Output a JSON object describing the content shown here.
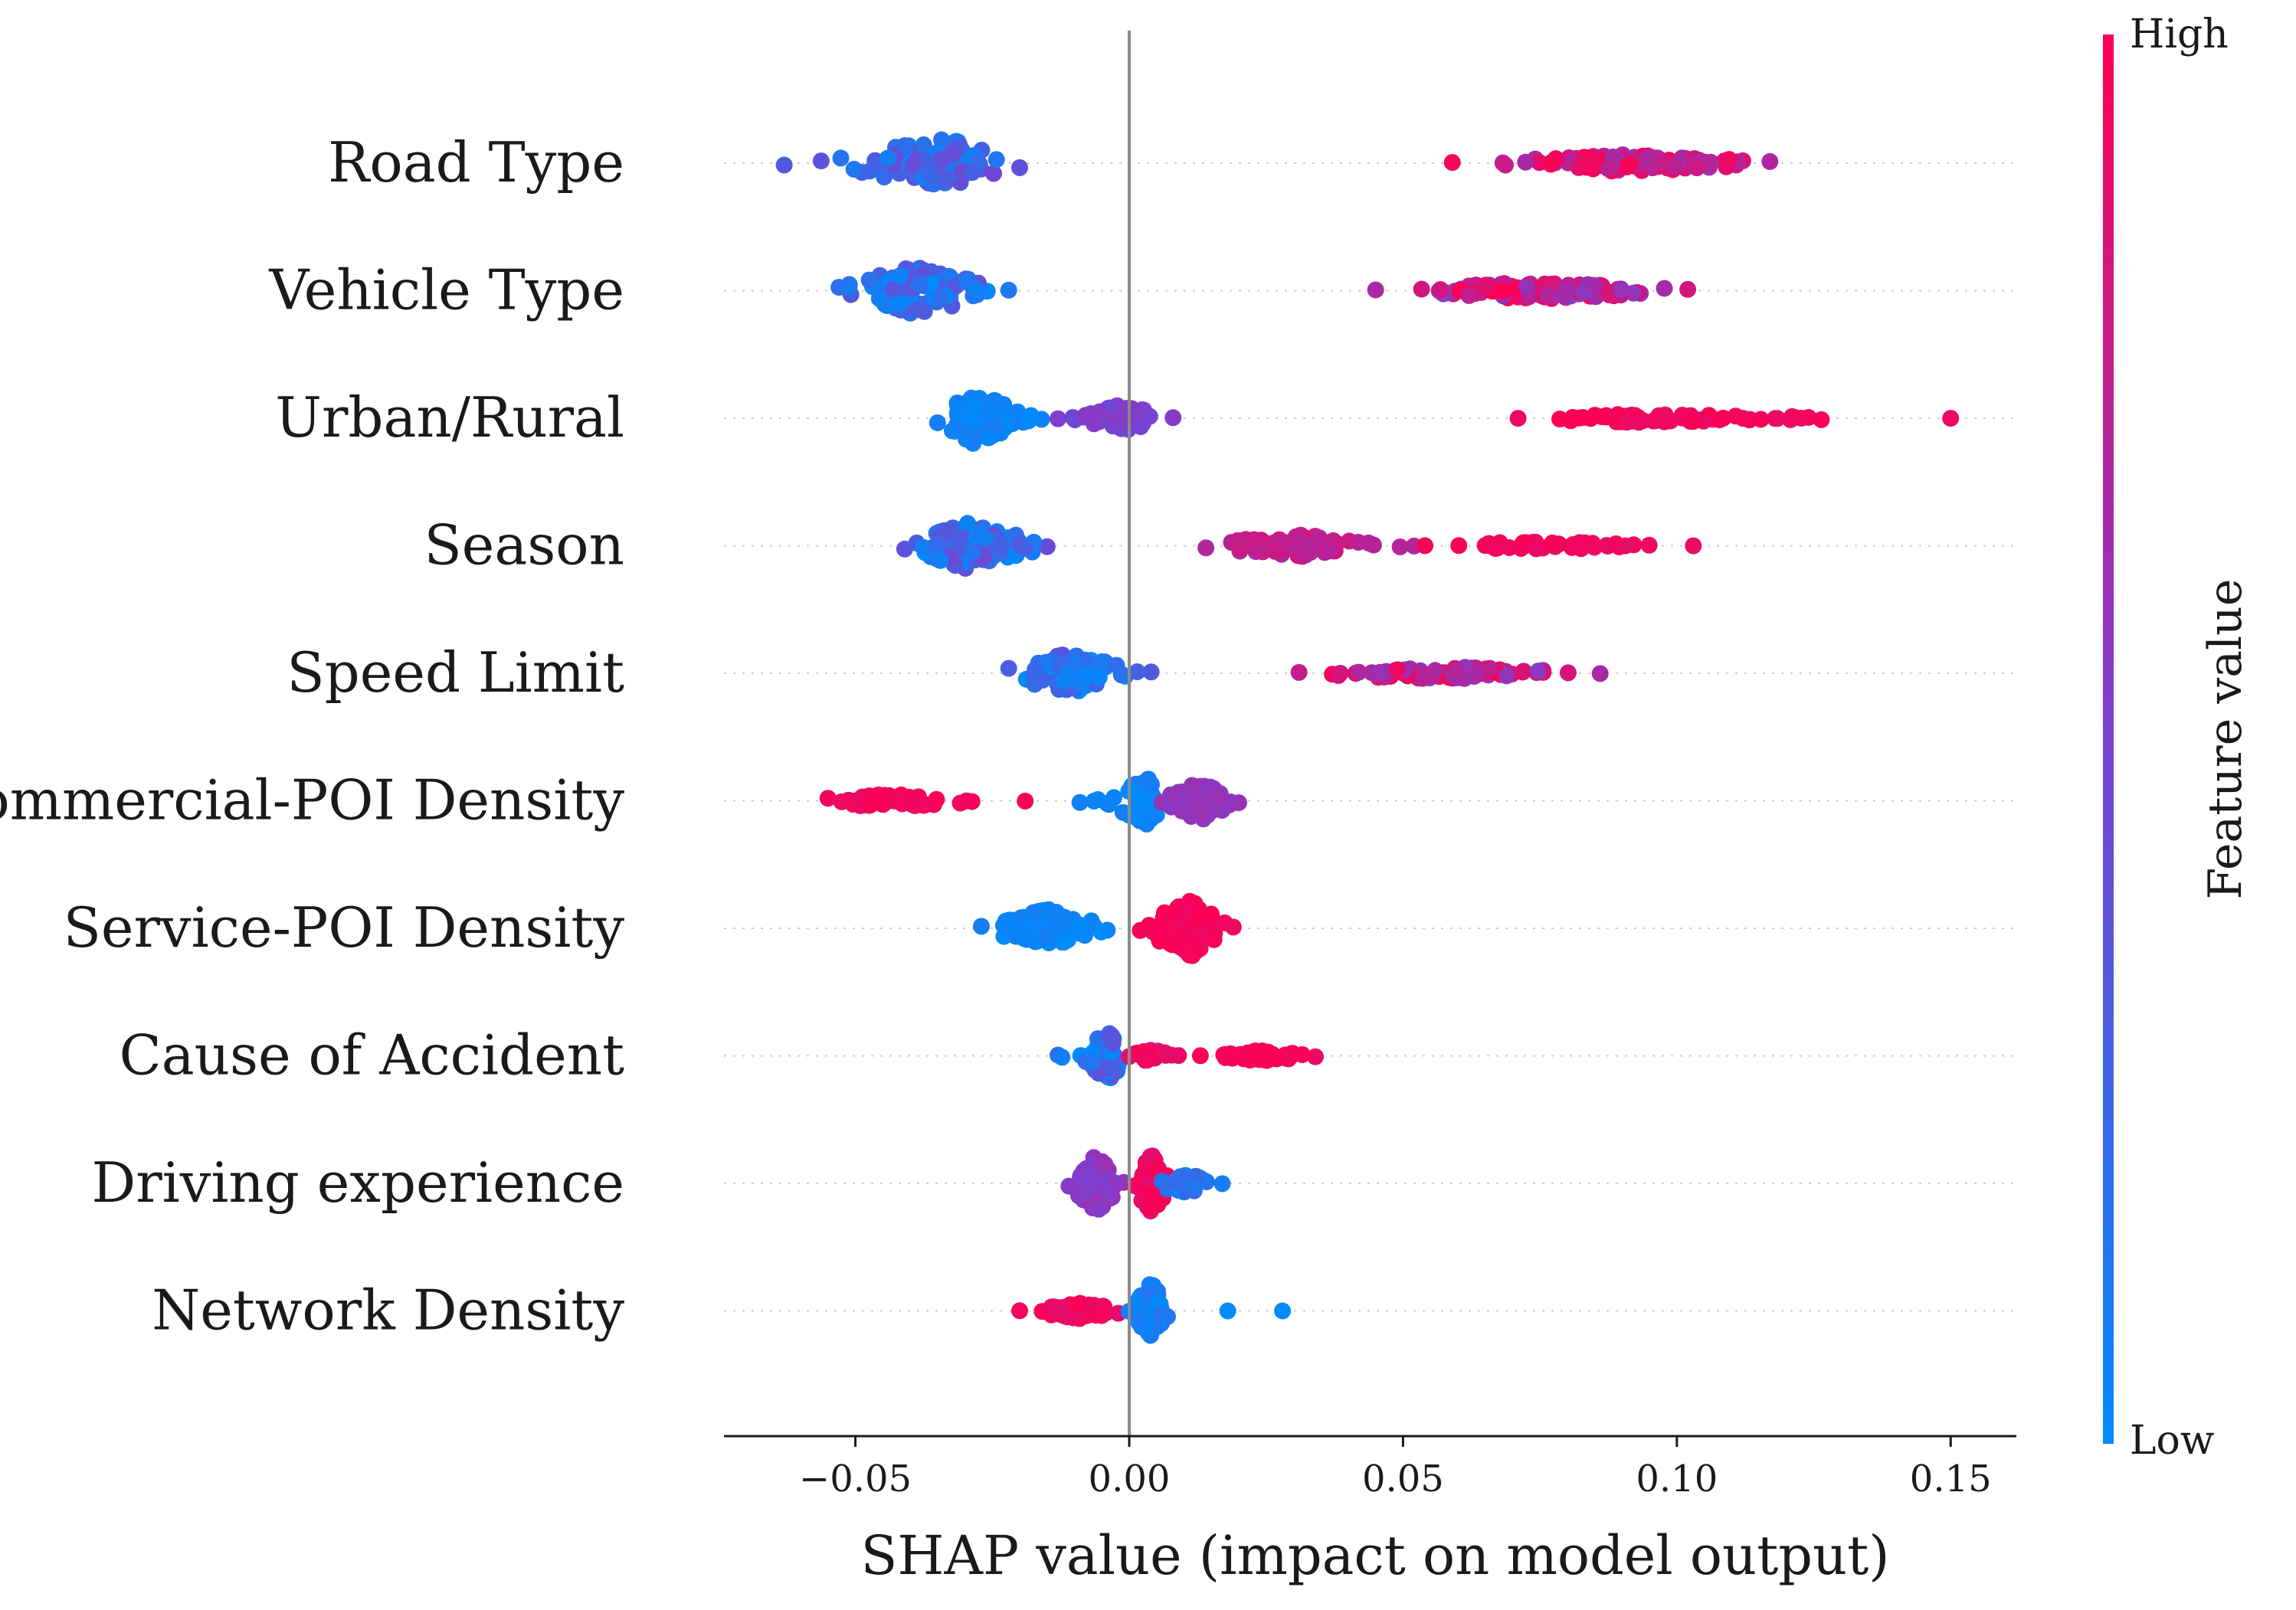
{
  "chart_data": {
    "type": "scatter",
    "subtype": "shap_beeswarm",
    "title": "",
    "xlabel": "SHAP value (impact on model output)",
    "ylabel": "",
    "xlim": [
      -0.074,
      0.162
    ],
    "xticks": [
      -0.05,
      0.0,
      0.05,
      0.1,
      0.15
    ],
    "xtick_labels": [
      "−0.05",
      "0.00",
      "0.05",
      "0.10",
      "0.15"
    ],
    "zero_line": 0.0,
    "colorbar": {
      "title": "Feature value",
      "high_label": "High",
      "low_label": "Low",
      "low_color": "#008bfb",
      "mid_color": "#7b3fd0",
      "high_color": "#ff0052"
    },
    "features": [
      {
        "name": "Road Type",
        "clusters": [
          {
            "min": -0.063,
            "max": -0.02,
            "center": -0.034,
            "n": 110,
            "spread": 0.55,
            "color_low": 0.05,
            "color_high": 0.45
          },
          {
            "min": 0.059,
            "max": 0.117,
            "center": 0.092,
            "n": 110,
            "spread": 0.2,
            "color_low": 0.65,
            "color_high": 1.0
          }
        ]
      },
      {
        "name": "Vehicle Type",
        "clusters": [
          {
            "min": -0.053,
            "max": -0.022,
            "center": -0.039,
            "n": 110,
            "spread": 0.55,
            "color_low": 0.0,
            "color_high": 0.4
          },
          {
            "min": 0.045,
            "max": 0.102,
            "center": 0.075,
            "n": 110,
            "spread": 0.2,
            "color_low": 0.55,
            "color_high": 1.0
          }
        ]
      },
      {
        "name": "Urban/Rural",
        "clusters": [
          {
            "min": -0.035,
            "max": -0.016,
            "center": -0.028,
            "n": 120,
            "spread": 0.6,
            "color_low": 0.0,
            "color_high": 0.1
          },
          {
            "min": -0.013,
            "max": 0.008,
            "center": -0.002,
            "n": 60,
            "spread": 0.3,
            "color_low": 0.45,
            "color_high": 0.55
          },
          {
            "min": 0.071,
            "max": 0.15,
            "center": 0.095,
            "n": 70,
            "spread": 0.1,
            "color_low": 0.92,
            "color_high": 1.0
          }
        ]
      },
      {
        "name": "Season",
        "clusters": [
          {
            "min": -0.041,
            "max": -0.015,
            "center": -0.029,
            "n": 120,
            "spread": 0.55,
            "color_low": 0.0,
            "color_high": 0.45
          },
          {
            "min": 0.014,
            "max": 0.052,
            "center": 0.031,
            "n": 70,
            "spread": 0.25,
            "color_low": 0.7,
            "color_high": 0.85
          },
          {
            "min": 0.054,
            "max": 0.103,
            "center": 0.075,
            "n": 45,
            "spread": 0.1,
            "color_low": 0.9,
            "color_high": 1.0
          }
        ]
      },
      {
        "name": "Speed Limit",
        "clusters": [
          {
            "min": -0.022,
            "max": 0.004,
            "center": -0.011,
            "n": 75,
            "spread": 0.45,
            "color_low": 0.0,
            "color_high": 0.35
          },
          {
            "min": 0.031,
            "max": 0.086,
            "center": 0.058,
            "n": 80,
            "spread": 0.15,
            "color_low": 0.55,
            "color_high": 1.0
          }
        ]
      },
      {
        "name": "Commercial-POI Density",
        "clusters": [
          {
            "min": -0.055,
            "max": -0.019,
            "center": -0.044,
            "n": 60,
            "spread": 0.15,
            "color_low": 0.92,
            "color_high": 1.0
          },
          {
            "min": -0.009,
            "max": 0.005,
            "center": 0.003,
            "n": 50,
            "spread": 0.55,
            "color_low": 0.0,
            "color_high": 0.1
          },
          {
            "min": 0.006,
            "max": 0.02,
            "center": 0.013,
            "n": 80,
            "spread": 0.45,
            "color_low": 0.55,
            "color_high": 0.62
          }
        ]
      },
      {
        "name": "Service-POI Density",
        "clusters": [
          {
            "min": -0.027,
            "max": -0.004,
            "center": -0.015,
            "n": 100,
            "spread": 0.45,
            "color_low": 0.0,
            "color_high": 0.1
          },
          {
            "min": 0.002,
            "max": 0.019,
            "center": 0.011,
            "n": 110,
            "spread": 0.65,
            "color_low": 0.92,
            "color_high": 1.0
          }
        ]
      },
      {
        "name": "Cause of Accident",
        "clusters": [
          {
            "min": -0.013,
            "max": -0.002,
            "center": -0.004,
            "n": 70,
            "spread": 0.55,
            "color_low": 0.0,
            "color_high": 0.4
          },
          {
            "min": 0.0,
            "max": 0.009,
            "center": 0.004,
            "n": 25,
            "spread": 0.15,
            "color_low": 0.85,
            "color_high": 1.0
          },
          {
            "min": 0.013,
            "max": 0.034,
            "center": 0.024,
            "n": 55,
            "spread": 0.12,
            "color_low": 0.92,
            "color_high": 1.0
          }
        ]
      },
      {
        "name": "Driving experience",
        "clusters": [
          {
            "min": -0.011,
            "max": -0.001,
            "center": -0.006,
            "n": 65,
            "spread": 0.65,
            "color_low": 0.5,
            "color_high": 0.65
          },
          {
            "min": 0.001,
            "max": 0.009,
            "center": 0.004,
            "n": 60,
            "spread": 0.65,
            "color_low": 0.9,
            "color_high": 1.0
          },
          {
            "min": 0.006,
            "max": 0.017,
            "center": 0.01,
            "n": 30,
            "spread": 0.25,
            "color_low": 0.05,
            "color_high": 0.3
          }
        ]
      },
      {
        "name": "Network Density",
        "clusters": [
          {
            "min": -0.02,
            "max": -0.002,
            "center": -0.009,
            "n": 90,
            "spread": 0.18,
            "color_low": 0.88,
            "color_high": 1.0
          },
          {
            "min": 0.0,
            "max": 0.007,
            "center": 0.004,
            "n": 60,
            "spread": 0.65,
            "color_low": 0.0,
            "color_high": 0.15
          },
          {
            "min": 0.018,
            "max": 0.018,
            "center": 0.018,
            "n": 1,
            "spread": 0.0,
            "color_low": 0.0,
            "color_high": 0.0
          },
          {
            "min": 0.028,
            "max": 0.028,
            "center": 0.028,
            "n": 1,
            "spread": 0.0,
            "color_low": 0.0,
            "color_high": 0.0
          }
        ]
      }
    ]
  }
}
